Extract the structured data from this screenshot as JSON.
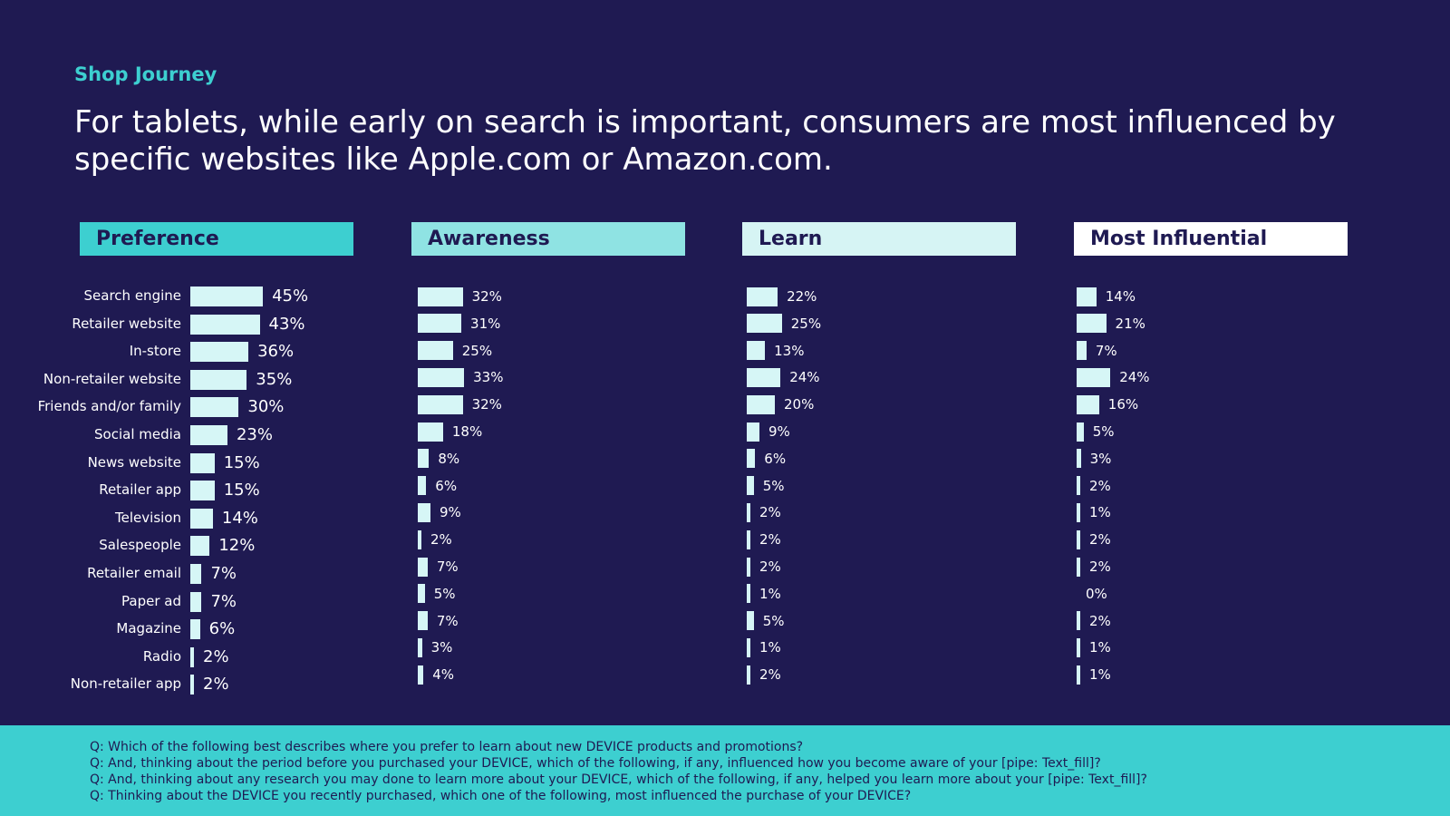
{
  "slide": {
    "kicker": "Shop Journey",
    "headline": "For tablets, while early on search is important, consumers are most influenced by specific websites like Apple.com or Amazon.com."
  },
  "colors": {
    "background": "#1f1a52",
    "accent": "#3dcfd0",
    "bar": "#d6f6f6",
    "header_preference": "#3dcfd0",
    "header_awareness": "#8fe3e3",
    "header_learn": "#d6f4f4",
    "header_most_influential": "#ffffff"
  },
  "chart_data": {
    "type": "bar",
    "orientation": "horizontal",
    "value_unit": "%",
    "categories": [
      "Search engine",
      "Retailer website",
      "In-store",
      "Non-retailer website",
      "Friends and/or family",
      "Social media",
      "News website",
      "Retailer app",
      "Television",
      "Salespeople",
      "Retailer email",
      "Paper ad",
      "Magazine",
      "Radio",
      "Non-retailer app"
    ],
    "series": [
      {
        "name": "Preference",
        "values": [
          45,
          43,
          36,
          35,
          30,
          23,
          15,
          15,
          14,
          12,
          7,
          7,
          6,
          2,
          2
        ]
      },
      {
        "name": "Awareness",
        "values": [
          32,
          31,
          25,
          33,
          32,
          18,
          8,
          6,
          9,
          2,
          7,
          5,
          7,
          3,
          4
        ]
      },
      {
        "name": "Learn",
        "values": [
          22,
          25,
          13,
          24,
          20,
          9,
          6,
          5,
          2,
          2,
          2,
          1,
          5,
          1,
          2
        ]
      },
      {
        "name": "Most Influential",
        "values": [
          14,
          21,
          7,
          24,
          16,
          5,
          3,
          2,
          1,
          2,
          2,
          0,
          2,
          1,
          1
        ]
      }
    ],
    "value_labels": [
      [
        "45%",
        "43%",
        "36%",
        "35%",
        "30%",
        "23%",
        "15%",
        "15%",
        "14%",
        "12%",
        "7%",
        "7%",
        "6%",
        "2%",
        "2%"
      ],
      [
        "32%",
        "31%",
        "25%",
        "33%",
        "32%",
        "18%",
        "8%",
        "6%",
        "9%",
        "2%",
        "7%",
        "5%",
        "7%",
        "3%",
        "4%"
      ],
      [
        "22%",
        "25%",
        "13%",
        "24%",
        "20%",
        "9%",
        "6%",
        "5%",
        "2%",
        "2%",
        "2%",
        "1%",
        "5%",
        "1%",
        "2%"
      ],
      [
        "14%",
        "21%",
        "7%",
        "24%",
        "16%",
        "5%",
        "3%",
        "2%",
        "1%",
        "2%",
        "2%",
        "0%",
        "2%",
        "1%",
        "1%"
      ]
    ]
  },
  "footer": {
    "questions": [
      "Q: Which of the following best describes where you prefer to learn about new DEVICE products and promotions?",
      "Q: And, thinking about the period before you purchased your DEVICE, which of the following, if any, influenced how you become aware of your [pipe: Text_fill]?",
      "Q: And, thinking about any research you may done to learn more about your DEVICE, which of the following, if any, helped you learn more about your [pipe: Text_fill]?",
      "Q: Thinking about the DEVICE you recently purchased, which one of the following, most influenced the purchase of your DEVICE?"
    ]
  }
}
